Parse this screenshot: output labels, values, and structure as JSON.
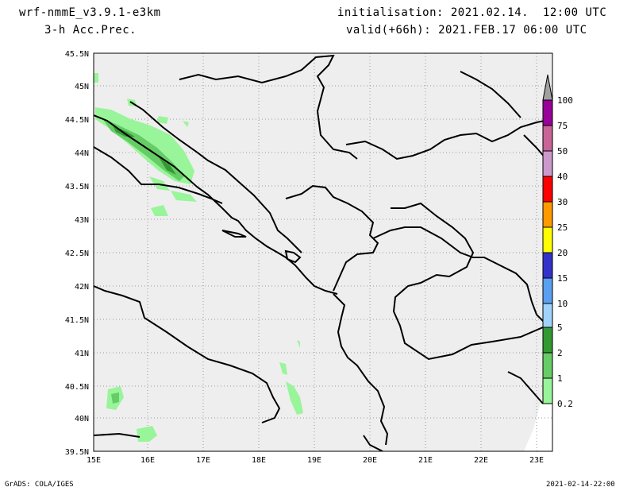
{
  "header": {
    "model": "wrf-nmmE_v3.9.1-e3km",
    "variable": "3-h Acc.Prec.",
    "initialisation": "initialisation: 2021.02.14.  12:00 UTC",
    "valid": "valid(+66h): 2021.FEB.17 06:00 UTC"
  },
  "footer": {
    "credit": "GrADS: COLA/IGES",
    "timestamp": "2021-02-14-22:00"
  },
  "map": {
    "background": "#eeeeee",
    "lat_labels": [
      "45.5N",
      "45N",
      "44.5N",
      "44N",
      "43.5N",
      "43N",
      "42.5N",
      "42N",
      "41.5N",
      "41N",
      "40.5N",
      "40N",
      "39.5N"
    ],
    "lon_labels": [
      "15E",
      "16E",
      "17E",
      "18E",
      "19E",
      "20E",
      "21E",
      "22E",
      "23E"
    ]
  },
  "colorbar": {
    "labels": [
      "100",
      "75",
      "50",
      "40",
      "30",
      "25",
      "20",
      "15",
      "10",
      "5",
      "2",
      "1",
      "0.2"
    ],
    "colors": [
      "#990099",
      "#c86496",
      "#cc99cc",
      "#ff0000",
      "#ff9900",
      "#ffff00",
      "#3333cc",
      "#5aa0f0",
      "#a0d2fa",
      "#339933",
      "#66cc66",
      "#99f599"
    ],
    "top_arrow_color": "#a0a0a0"
  }
}
